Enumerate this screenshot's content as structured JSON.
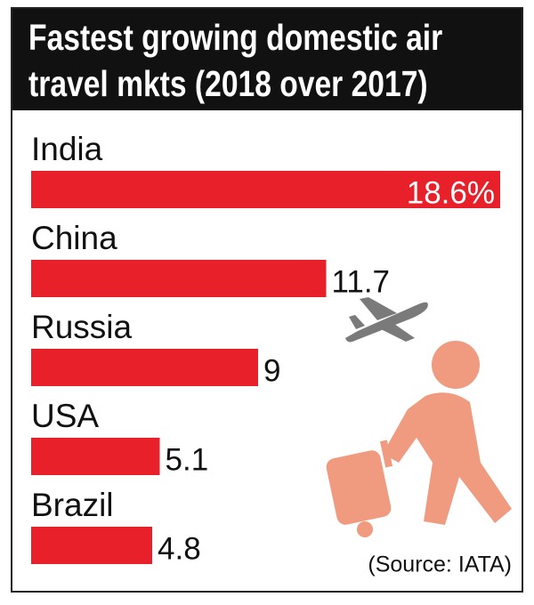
{
  "chart_data": {
    "type": "bar",
    "orientation": "horizontal",
    "title": "Fastest growing domestic air travel mkts (2018 over 2017)",
    "categories": [
      "India",
      "China",
      "Russia",
      "USA",
      "Brazil"
    ],
    "values": [
      18.6,
      11.7,
      9,
      5.1,
      4.8
    ],
    "value_labels": [
      "18.6%",
      "11.7",
      "9",
      "5.1",
      "4.8"
    ],
    "color": "#e8202a",
    "source": "(Source: IATA)"
  }
}
